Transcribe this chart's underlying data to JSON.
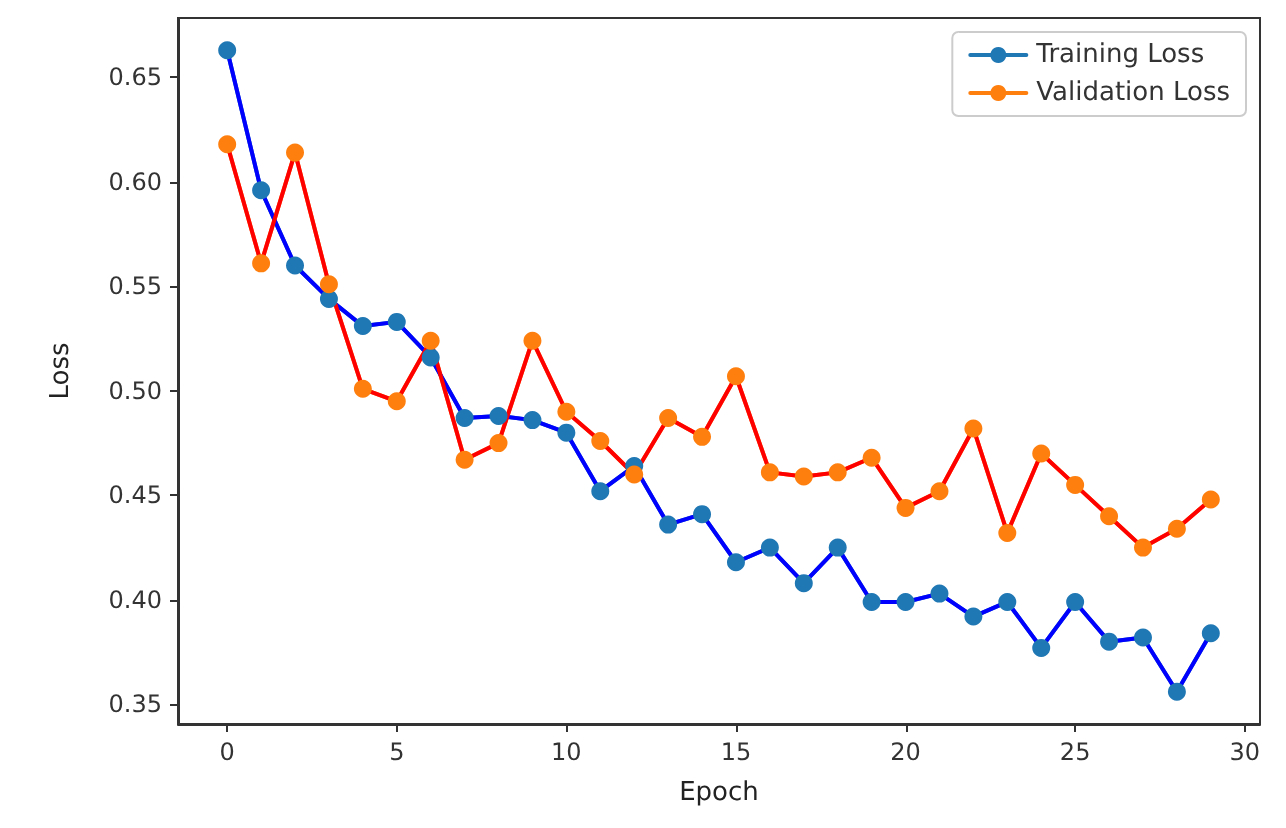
{
  "chart_data": {
    "type": "line",
    "xlabel": "Epoch",
    "ylabel": "Loss",
    "x": [
      0,
      1,
      2,
      3,
      4,
      5,
      6,
      7,
      8,
      9,
      10,
      11,
      12,
      13,
      14,
      15,
      16,
      17,
      18,
      19,
      20,
      21,
      22,
      23,
      24,
      25,
      26,
      27,
      28,
      29
    ],
    "series": [
      {
        "name": "Training Loss",
        "color": "#1f77b4",
        "values": [
          0.663,
          0.596,
          0.56,
          0.544,
          0.531,
          0.533,
          0.516,
          0.487,
          0.488,
          0.486,
          0.48,
          0.452,
          0.464,
          0.436,
          0.441,
          0.418,
          0.425,
          0.408,
          0.425,
          0.399,
          0.399,
          0.403,
          0.392,
          0.399,
          0.377,
          0.399,
          0.38,
          0.382,
          0.356,
          0.384
        ]
      },
      {
        "name": "Validation Loss",
        "color": "#ff7f0e",
        "values": [
          0.618,
          0.561,
          0.614,
          0.551,
          0.501,
          0.495,
          0.524,
          0.467,
          0.475,
          0.524,
          0.49,
          0.476,
          0.46,
          0.487,
          0.478,
          0.507,
          0.461,
          0.459,
          0.461,
          0.468,
          0.444,
          0.452,
          0.482,
          0.432,
          0.47,
          0.455,
          0.44,
          0.425,
          0.434,
          0.448
        ]
      },
      {
        "color": "#0000ff",
        "marker": "none",
        "values": [
          0.663,
          0.596,
          0.56,
          0.544,
          0.531,
          0.533,
          0.516,
          0.487,
          0.488,
          0.486,
          0.48,
          0.452,
          0.464,
          0.436,
          0.441,
          0.418,
          0.425,
          0.408,
          0.425,
          0.399,
          0.399,
          0.403,
          0.392,
          0.399,
          0.377,
          0.399,
          0.38,
          0.382,
          0.356,
          0.384
        ]
      },
      {
        "color": "#ff0000",
        "marker": "none",
        "values": [
          0.618,
          0.561,
          0.614,
          0.551,
          0.501,
          0.495,
          0.524,
          0.467,
          0.475,
          0.524,
          0.49,
          0.476,
          0.46,
          0.487,
          0.478,
          0.507,
          0.461,
          0.459,
          0.461,
          0.468,
          0.444,
          0.452,
          0.482,
          0.432,
          0.47,
          0.455,
          0.44,
          0.425,
          0.434,
          0.448
        ]
      }
    ],
    "xlim": [
      -1.45,
      30.45
    ],
    "xticks": [
      0,
      5,
      10,
      15,
      20,
      25,
      30
    ],
    "ylim": [
      0.3406,
      0.6784
    ],
    "yticks": [
      0.35,
      {
        "value": 0.4,
        "label": "0.40"
      },
      0.45,
      {
        "value": 0.5,
        "label": "0.50"
      },
      0.55,
      {
        "value": 0.6,
        "label": "0.60"
      },
      0.65
    ],
    "marker": "circle",
    "legend": "top right",
    "grid": false
  }
}
